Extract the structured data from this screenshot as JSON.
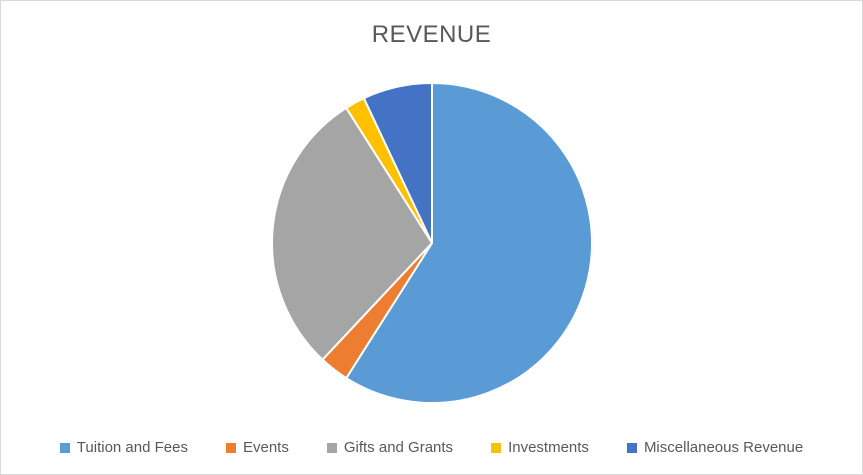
{
  "chart": {
    "title": "REVENUE"
  },
  "chart_data": {
    "type": "pie",
    "title": "REVENUE",
    "categories": [
      "Tuition and Fees",
      "Events",
      "Gifts and Grants",
      "Investments",
      "Miscellaneous Revenue"
    ],
    "values": [
      59,
      3,
      29,
      2,
      7
    ],
    "unit": "percent_estimated",
    "colors": [
      "#5B9BD5",
      "#ED7D31",
      "#A5A5A5",
      "#FFC000",
      "#4472C4"
    ],
    "slice_border_color": "#FFFFFF",
    "start_angle_deg": 0,
    "direction": "clockwise",
    "legend_position": "bottom",
    "title_color": "#595959",
    "legend_text_color": "#595959",
    "background_color": "#FFFFFF",
    "frame_border_color": "#D9D9D9"
  }
}
